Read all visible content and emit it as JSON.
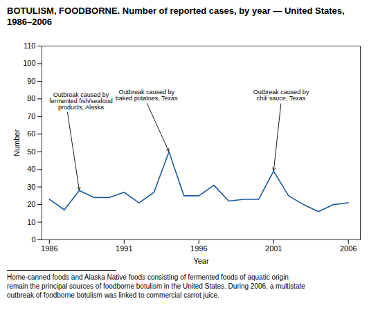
{
  "chart_data": {
    "type": "line",
    "title": "BOTULISM, FOODBORNE. Number of reported cases, by year — United States,\n1986–2006",
    "x_label": "Year",
    "y_label": "Number",
    "x": [
      1986,
      1987,
      1988,
      1989,
      1990,
      1991,
      1992,
      1993,
      1994,
      1995,
      1996,
      1997,
      1998,
      1999,
      2000,
      2001,
      2002,
      2003,
      2004,
      2005,
      2006
    ],
    "values": [
      23,
      17,
      28,
      24,
      24,
      27,
      21,
      27,
      50,
      25,
      25,
      31,
      22,
      23,
      23,
      39,
      25,
      20,
      16,
      20,
      21
    ],
    "color": "#1c5998",
    "xlim": [
      1985.5,
      2006.8
    ],
    "xticks": [
      1986,
      1991,
      1996,
      2001,
      2006
    ],
    "ylim": [
      0,
      110
    ],
    "yticks": [
      0,
      10,
      20,
      30,
      40,
      50,
      60,
      70,
      80,
      90,
      100,
      110
    ],
    "grid": false,
    "annotations": [
      {
        "text": "Outbreak caused by\nfermented fish/seafood\nproducts, Alaska",
        "x": 1988,
        "y": 28,
        "text_x": 1987.2,
        "text_y": 73
      },
      {
        "text": "Outbreak caused by\nbaked potatoes, Texas",
        "x": 1994,
        "y": 50,
        "text_x": 1992.5,
        "text_y": 78
      },
      {
        "text": "Outbreak caused by\nchili sauce, Texas",
        "x": 2001,
        "y": 39,
        "text_x": 2001.5,
        "text_y": 78
      }
    ],
    "footnote": "Home-canned foods and Alaska Native foods consisting of fermented foods of aquatic origin\nremain the principal sources of foodborne botulism in the United States. During 2006, a multistate\noutbreak of foodborne botulism was linked to commercial carrot juice."
  }
}
